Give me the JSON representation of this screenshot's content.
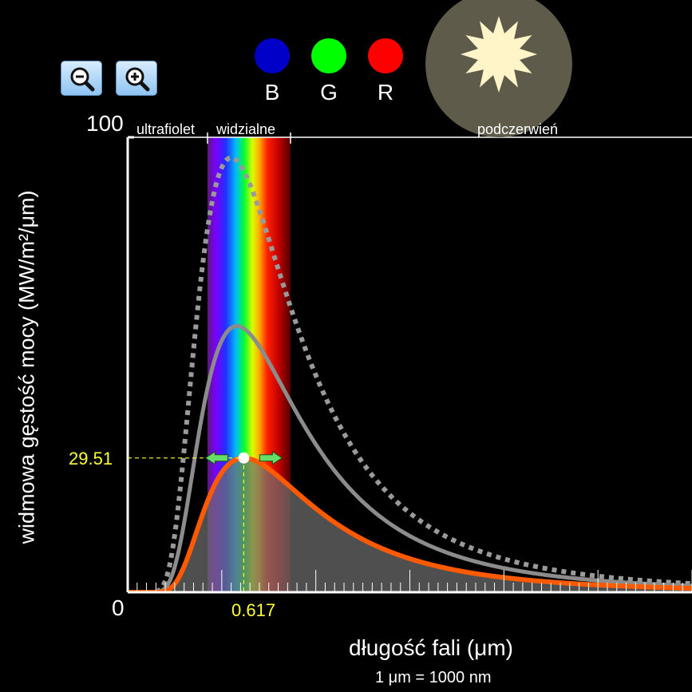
{
  "controls": {
    "zoom_out": "zoom-out",
    "zoom_in": "zoom-in"
  },
  "color_filters": [
    {
      "label": "B",
      "color": "#0000c8"
    },
    {
      "label": "G",
      "color": "#00ff00"
    },
    {
      "label": "R",
      "color": "#ff0000"
    }
  ],
  "star": {
    "color": "#fff5c8",
    "disc_color": "#5e5b4a"
  },
  "bands": {
    "uv": "ultrafiolet",
    "visible": "widzialne",
    "ir": "podczerwień"
  },
  "readout": {
    "peak_value": "29.51",
    "peak_wavelength": "0.617"
  },
  "chart_data": {
    "type": "line",
    "xlabel": "długość fali (μm)",
    "xnote": "1 μm = 1000 nm",
    "ylabel": "widmowa gęstość mocy (MW/m²/μm)",
    "ylim": [
      0,
      100
    ],
    "xlim": [
      0,
      3
    ],
    "y_tick_labels": [
      "0",
      "100"
    ],
    "peak": {
      "x": 0.617,
      "y": 29.51
    },
    "series": [
      {
        "style": "dotted",
        "color": "#9a9a9a",
        "peak_x": 0.55,
        "peak_y": 95.5
      },
      {
        "style": "solid",
        "color": "#8c8c8c",
        "peak_x": 0.58,
        "peak_y": 58.5
      },
      {
        "style": "solid",
        "color": "#ff5a00",
        "peak_x": 0.617,
        "peak_y": 29.51
      }
    ],
    "grid": false
  }
}
